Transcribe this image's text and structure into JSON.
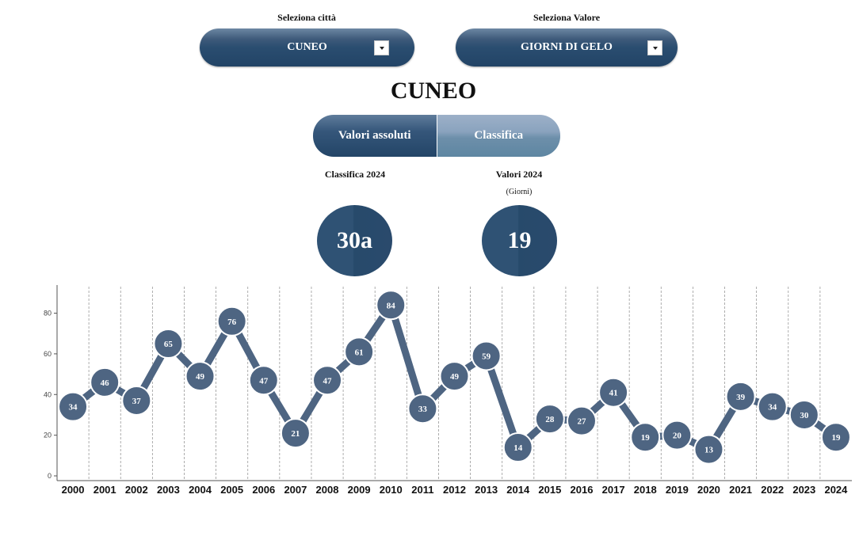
{
  "selectors": {
    "city_label": "Seleziona città",
    "city_value": "CUNEO",
    "value_label": "Seleziona Valore",
    "value_value": "GIORNI DI GELO"
  },
  "title": "CUNEO",
  "toggle": {
    "absolute": "Valori assoluti",
    "ranking": "Classifica"
  },
  "stats": {
    "rank_label": "Classifica 2024",
    "rank_value": "30a",
    "value_label": "Valori 2024",
    "value_unit": "(Giorni)",
    "value_value": "19"
  },
  "colors": {
    "accent": "#2a4d70",
    "series": "#4e6582",
    "grid": "#999999"
  },
  "chart_data": {
    "type": "line",
    "x": [
      "2000",
      "2001",
      "2002",
      "2003",
      "2004",
      "2005",
      "2006",
      "2007",
      "2008",
      "2009",
      "2010",
      "2011",
      "2012",
      "2013",
      "2014",
      "2015",
      "2016",
      "2017",
      "2018",
      "2019",
      "2020",
      "2021",
      "2022",
      "2023",
      "2024"
    ],
    "values": [
      34,
      46,
      37,
      65,
      49,
      76,
      47,
      21,
      47,
      61,
      84,
      33,
      49,
      59,
      14,
      28,
      27,
      41,
      19,
      20,
      13,
      39,
      34,
      30,
      19
    ],
    "yticks": [
      0,
      20,
      40,
      60,
      80
    ],
    "ylim": [
      0,
      95
    ],
    "title": "",
    "xlabel": "",
    "ylabel": "",
    "grid": "vertical dashed",
    "data_labels": true
  }
}
